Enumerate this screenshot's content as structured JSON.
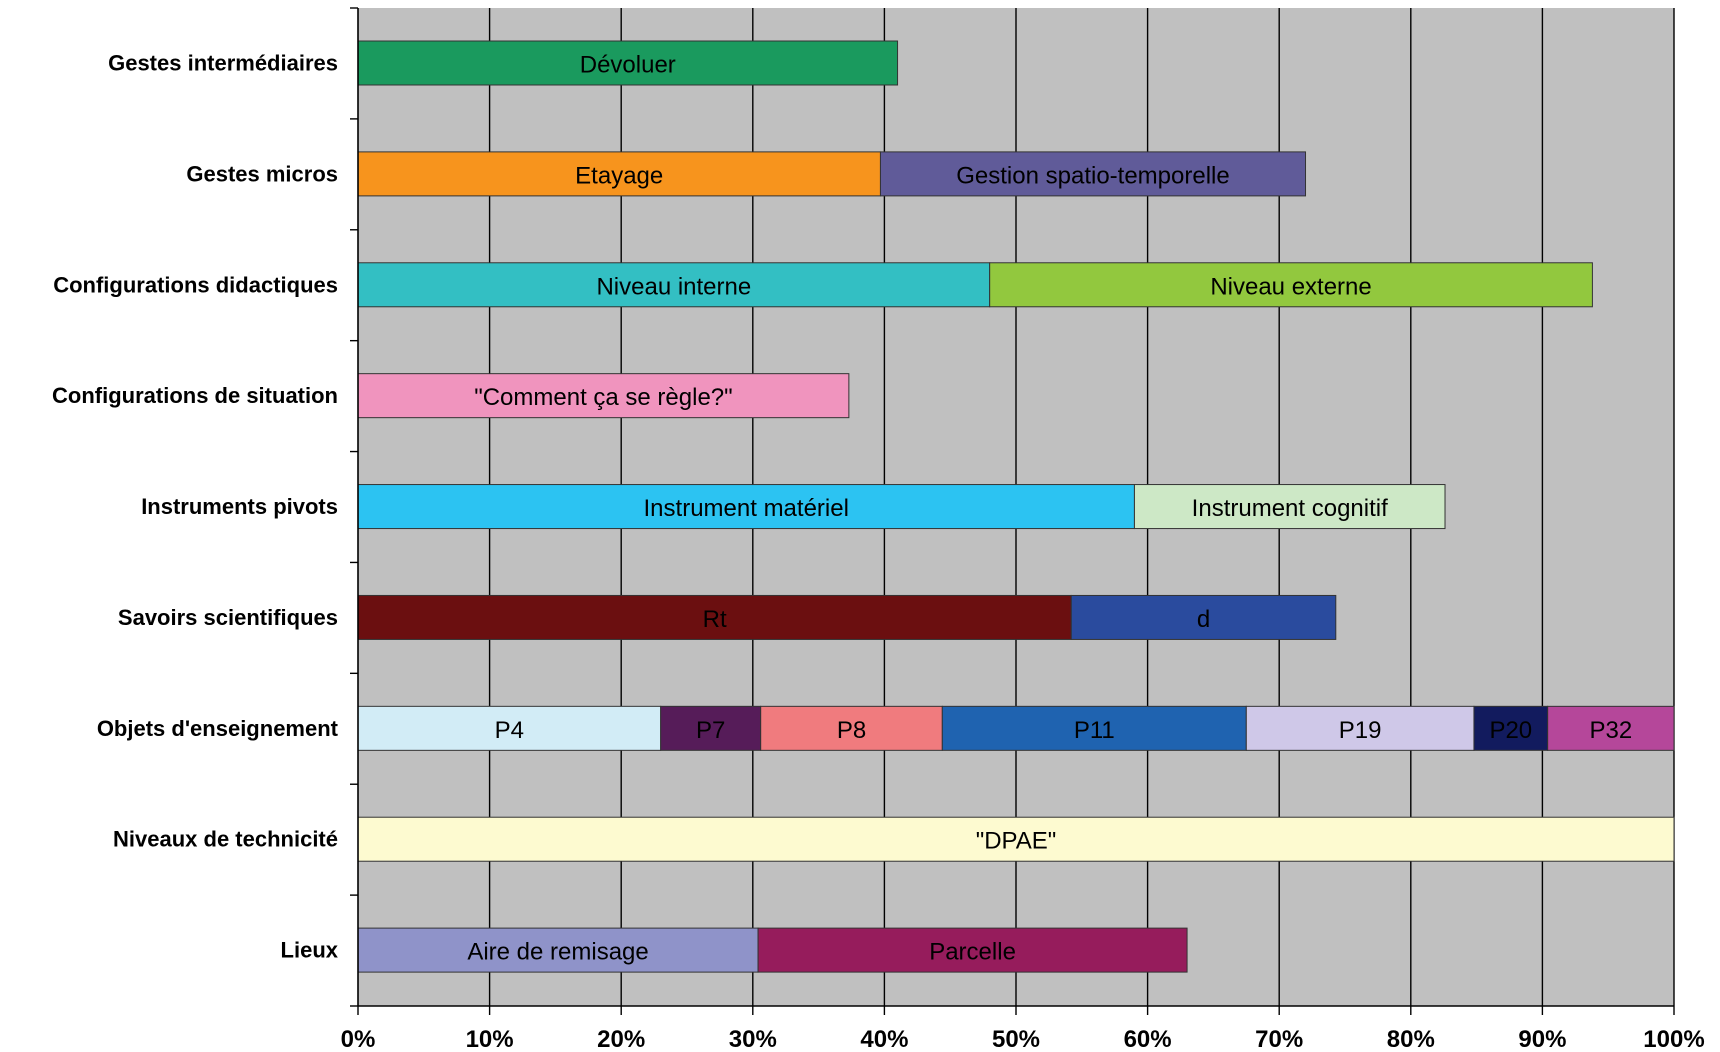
{
  "chart_data": {
    "type": "bar",
    "orientation": "horizontal",
    "stacked": true,
    "title": "",
    "xlabel": "",
    "ylabel": "",
    "xlim": [
      0,
      100
    ],
    "x_ticks": [
      "0%",
      "10%",
      "20%",
      "30%",
      "40%",
      "50%",
      "60%",
      "70%",
      "80%",
      "90%",
      "100%"
    ],
    "grid": true,
    "plot_background": "#C0C0C0",
    "categories": [
      {
        "name": "Gestes intermédiaires",
        "segments": [
          {
            "label": "Dévoluer",
            "value": 41,
            "color": "#1A9A5E",
            "text_color": "#000000"
          }
        ]
      },
      {
        "name": "Gestes micros",
        "segments": [
          {
            "label": "Etayage",
            "value": 39.7,
            "color": "#F7941D",
            "text_color": "#000000"
          },
          {
            "label": "Gestion spatio-temporelle",
            "value": 32.3,
            "color": "#605B99",
            "text_color": "#000000"
          }
        ]
      },
      {
        "name": "Configurations didactiques",
        "segments": [
          {
            "label": "Niveau interne",
            "value": 48,
            "color": "#33BFC3",
            "text_color": "#000000"
          },
          {
            "label": "Niveau externe",
            "value": 45.8,
            "color": "#92C83E",
            "text_color": "#000000"
          }
        ]
      },
      {
        "name": "Configurations de situation",
        "segments": [
          {
            "label": "\"Comment ça se règle?\"",
            "value": 37.3,
            "color": "#F094BE",
            "text_color": "#000000"
          }
        ]
      },
      {
        "name": "Instruments pivots",
        "segments": [
          {
            "label": "Instrument matériel",
            "value": 59,
            "color": "#2CC3F2",
            "text_color": "#000000"
          },
          {
            "label": "Instrument cognitif",
            "value": 23.6,
            "color": "#CDE8C6",
            "text_color": "#000000"
          }
        ]
      },
      {
        "name": "Savoirs scientifiques",
        "segments": [
          {
            "label": "Rt",
            "value": 54.2,
            "color": "#6B0F10",
            "text_color": "#000000"
          },
          {
            "label": "d",
            "value": 20.1,
            "color": "#2A4B9E",
            "text_color": "#000000"
          }
        ]
      },
      {
        "name": "Objets d'enseignement",
        "segments": [
          {
            "label": "P4",
            "value": 23,
            "color": "#D2ECF6",
            "text_color": "#000000"
          },
          {
            "label": "P7",
            "value": 7.6,
            "color": "#561C59",
            "text_color": "#000000"
          },
          {
            "label": "P8",
            "value": 13.8,
            "color": "#F07B7E",
            "text_color": "#000000"
          },
          {
            "label": "P11",
            "value": 23.1,
            "color": "#1F63B0",
            "text_color": "#000000"
          },
          {
            "label": "P19",
            "value": 17.3,
            "color": "#CFC8E8",
            "text_color": "#000000"
          },
          {
            "label": "P20",
            "value": 5.6,
            "color": "#121B5E",
            "text_color": "#000000"
          },
          {
            "label": "P32",
            "value": 9.6,
            "color": "#B5479A",
            "text_color": "#000000"
          }
        ]
      },
      {
        "name": "Niveaux de technicité",
        "segments": [
          {
            "label": "\"DPAE\"",
            "value": 100,
            "color": "#FDFAD0",
            "text_color": "#000000"
          }
        ]
      },
      {
        "name": "Lieux",
        "segments": [
          {
            "label": "Aire de remisage",
            "value": 30.4,
            "color": "#8F93C9",
            "text_color": "#000000"
          },
          {
            "label": "Parcelle",
            "value": 32.6,
            "color": "#961C5C",
            "text_color": "#000000"
          }
        ]
      }
    ]
  }
}
